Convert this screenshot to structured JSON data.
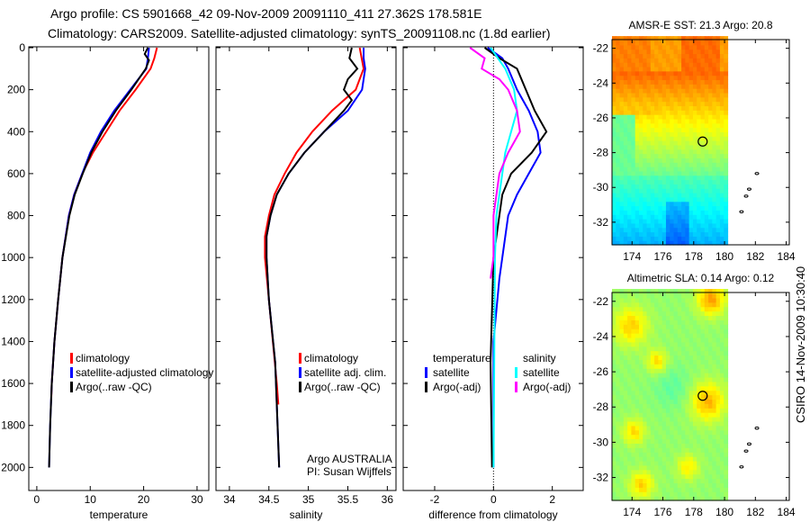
{
  "header": {
    "line1": "Argo profile: CS 5901668_42 09-Nov-2009 20091110_411 27.362S 178.581E",
    "line2": "Climatology: CARS2009. Satellite-adjusted climatology: synTS_20091108.nc (1.8d earlier)"
  },
  "footer_stamp": "CSIRO 14-Nov-2009 10:30:40",
  "chart_data": [
    {
      "type": "line",
      "id": "temperature",
      "xlabel": "temperature",
      "ylabel": "",
      "xlim": [
        -1.5,
        32.2
      ],
      "ylim": [
        0,
        2110
      ],
      "y_reversed": true,
      "xticks": [
        0,
        10,
        20,
        30
      ],
      "yticks": [
        0,
        200,
        400,
        600,
        800,
        1000,
        1200,
        1400,
        1600,
        1800,
        2000
      ],
      "legend": [
        "climatology",
        "satellite-adjusted climatology",
        "Argo(..raw -QC)"
      ],
      "series": [
        {
          "name": "climatology",
          "color": "#ff0000",
          "depth": [
            0,
            50,
            100,
            200,
            300,
            400,
            500,
            600,
            700,
            800,
            1000,
            1200,
            1400,
            1600,
            1680
          ],
          "values": [
            22.5,
            22,
            21.3,
            18.5,
            15.5,
            13,
            10.5,
            8.5,
            7,
            6,
            4.8,
            4,
            3.3,
            2.8,
            2.7
          ]
        },
        {
          "name": "satellite-adjusted climatology",
          "color": "#0000ff",
          "depth": [
            0,
            50,
            100,
            200,
            300,
            400,
            500,
            600,
            700,
            800,
            1000,
            1200,
            1400,
            1600,
            1800,
            2000
          ],
          "values": [
            21,
            20.8,
            20.5,
            17.5,
            14.5,
            12,
            10,
            8.5,
            7,
            6,
            4.8,
            4,
            3.3,
            2.8,
            2.5,
            2.3
          ]
        },
        {
          "name": "Argo(..raw -QC)",
          "color": "#000000",
          "depth": [
            0,
            30,
            60,
            100,
            200,
            300,
            400,
            500,
            600,
            700,
            800,
            1000,
            1200,
            1400,
            1600,
            1800,
            2000
          ],
          "values": [
            20.8,
            20.2,
            21,
            20.4,
            17.7,
            14.8,
            12.3,
            10.2,
            8.6,
            7.1,
            6.1,
            4.8,
            4,
            3.3,
            2.8,
            2.5,
            2.3
          ]
        }
      ]
    },
    {
      "type": "line",
      "id": "salinity",
      "xlabel": "salinity",
      "xlim": [
        33.83,
        36.11
      ],
      "ylim": [
        0,
        2110
      ],
      "y_reversed": true,
      "xticks": [
        34,
        34.5,
        35,
        35.5,
        36
      ],
      "xticklabels": [
        "34",
        "34.5",
        "35",
        "35.5",
        "36"
      ],
      "legend": [
        "climatology",
        "satellite adj. clim.",
        "Argo(..raw -QC)"
      ],
      "annotation": [
        "Argo AUSTRALIA",
        "PI: Susan Wijffels"
      ],
      "series": [
        {
          "name": "climatology",
          "color": "#ff0000",
          "depth": [
            0,
            100,
            200,
            300,
            400,
            500,
            600,
            700,
            800,
            900,
            1000,
            1200,
            1400,
            1600,
            1700
          ],
          "values": [
            35.65,
            35.7,
            35.6,
            35.3,
            35.05,
            34.85,
            34.7,
            34.57,
            34.5,
            34.45,
            34.45,
            34.5,
            34.55,
            34.6,
            34.62
          ]
        },
        {
          "name": "satellite adj. clim.",
          "color": "#0000ff",
          "depth": [
            0,
            50,
            100,
            200,
            300,
            400,
            500,
            600,
            700,
            800,
            900,
            1000,
            1200,
            1500,
            2000
          ],
          "values": [
            35.7,
            35.7,
            35.72,
            35.68,
            35.5,
            35.2,
            34.95,
            34.75,
            34.6,
            34.52,
            34.47,
            34.47,
            34.5,
            34.58,
            34.63
          ]
        },
        {
          "name": "Argo(..raw -QC)",
          "color": "#000000",
          "depth": [
            0,
            50,
            100,
            150,
            200,
            250,
            300,
            400,
            500,
            600,
            700,
            800,
            900,
            1000,
            1200,
            1500,
            2000
          ],
          "values": [
            35.55,
            35.52,
            35.62,
            35.5,
            35.45,
            35.55,
            35.45,
            35.2,
            34.95,
            34.75,
            34.6,
            34.52,
            34.47,
            34.47,
            34.5,
            34.58,
            34.63
          ]
        }
      ]
    },
    {
      "type": "line",
      "id": "difference",
      "xlabel": "difference from climatology",
      "xlim": [
        -3.07,
        3.05
      ],
      "ylim": [
        0,
        2110
      ],
      "y_reversed": true,
      "xticks": [
        -2,
        0,
        2
      ],
      "legend_left": {
        "title": "temperature",
        "items": [
          "satellite",
          "Argo(-adj)"
        ]
      },
      "legend_right": {
        "title": "salinity",
        "items": [
          "satellite",
          "Argo(-adj)"
        ]
      },
      "series": [
        {
          "name": "temperature satellite",
          "color": "#0000ff",
          "depth": [
            0,
            50,
            100,
            200,
            300,
            400,
            500,
            600,
            700,
            800,
            1000,
            1100,
            1400,
            2000
          ],
          "values": [
            -0.2,
            0.3,
            0.5,
            0.8,
            1.2,
            1.5,
            1.6,
            1.2,
            0.8,
            0.5,
            0.3,
            0.2,
            0,
            0
          ]
        },
        {
          "name": "temperature Argo(-adj)",
          "color": "#000000",
          "depth": [
            0,
            50,
            100,
            200,
            300,
            400,
            500,
            600,
            700,
            800,
            1000,
            1500,
            2000
          ],
          "values": [
            -0.3,
            0.2,
            0.8,
            1.1,
            1.4,
            1.8,
            1.3,
            0.6,
            0.3,
            0.2,
            0,
            -0.1,
            -0.05
          ]
        },
        {
          "name": "salinity satellite",
          "color": "#00ffff",
          "depth": [
            0,
            100,
            200,
            300,
            400,
            500,
            600,
            800,
            1000,
            2000
          ],
          "values": [
            -0.1,
            0.4,
            0.7,
            0.8,
            0.6,
            0.4,
            0.3,
            0.1,
            0.05,
            0
          ]
        },
        {
          "name": "salinity Argo(-adj)",
          "color": "#ff00ff",
          "depth": [
            0,
            50,
            100,
            150,
            200,
            300,
            400,
            500,
            600,
            800,
            1000,
            1100
          ],
          "values": [
            -0.8,
            -0.3,
            -0.4,
            0.2,
            0.5,
            0.8,
            0.9,
            0.5,
            0.2,
            0,
            0,
            -0.1
          ]
        }
      ]
    },
    {
      "type": "heatmap",
      "id": "sst-map",
      "title": "AMSR-E SST: 21.3 Argo: 20.8",
      "xlim": [
        172.7,
        184.2
      ],
      "ylim": [
        -33.3,
        -21.5
      ],
      "xticks": [
        174,
        176,
        178,
        180,
        182,
        184
      ],
      "yticks": [
        -22,
        -24,
        -26,
        -28,
        -30,
        -32
      ],
      "marker": {
        "lon": 178.581,
        "lat": -27.362
      }
    },
    {
      "type": "heatmap",
      "id": "sla-map",
      "title": "Altimetric SLA: 0.14 Argo: 0.12",
      "xlim": [
        172.7,
        184.2
      ],
      "ylim": [
        -33.3,
        -21.5
      ],
      "xticks": [
        174,
        176,
        178,
        180,
        182,
        184
      ],
      "yticks": [
        -22,
        -24,
        -26,
        -28,
        -30,
        -32
      ],
      "marker": {
        "lon": 178.581,
        "lat": -27.362
      }
    }
  ]
}
